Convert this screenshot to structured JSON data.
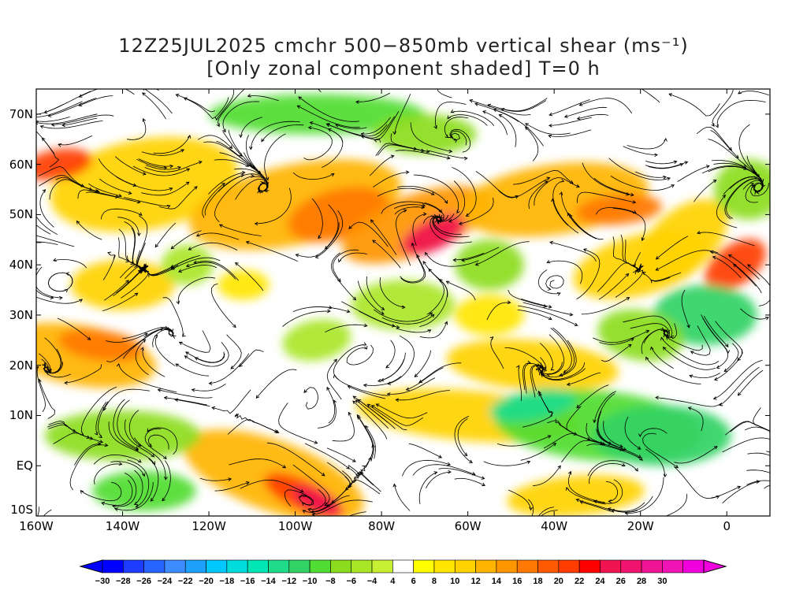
{
  "title": {
    "line1": "12Z25JUL2025 cmchr 500−850mb vertical shear (ms⁻¹)",
    "line2": "[Only zonal component shaded] T=0 h"
  },
  "map": {
    "lat_labels": [
      "70N",
      "60N",
      "50N",
      "40N",
      "30N",
      "20N",
      "10N",
      "EQ",
      "10S"
    ],
    "lat_values": [
      70,
      60,
      50,
      40,
      30,
      20,
      10,
      0,
      -10
    ],
    "lon_labels": [
      "160W",
      "140W",
      "120W",
      "100W",
      "80W",
      "60W",
      "40W",
      "20W",
      "0"
    ],
    "lon_values": [
      -160,
      -140,
      -120,
      -100,
      -80,
      -60,
      -40,
      -20,
      0
    ],
    "lat_range": [
      -10,
      75
    ],
    "lon_range": [
      -160,
      10
    ],
    "field": "500-850mb zonal vertical shear, streamlines overlaid"
  },
  "colorbar": {
    "labels": [
      "-30",
      "-28",
      "-26",
      "-24",
      "-22",
      "-20",
      "-18",
      "-16",
      "-14",
      "-12",
      "-10",
      "-8",
      "-6",
      "-4",
      "4",
      "6",
      "8",
      "10",
      "12",
      "14",
      "16",
      "18",
      "20",
      "22",
      "24",
      "26",
      "28",
      "30"
    ],
    "colors": [
      "#0000ff",
      "#1e3cff",
      "#2864ff",
      "#3c8cff",
      "#1ea0ff",
      "#00c8ff",
      "#00dcdc",
      "#00e6b4",
      "#1edc8c",
      "#32d264",
      "#50dc32",
      "#8cdc1e",
      "#aae628",
      "#c8f032",
      "#ffffff",
      "#ffff00",
      "#ffe600",
      "#ffd200",
      "#ffb400",
      "#ff9600",
      "#ff7800",
      "#ff5a00",
      "#ff3c00",
      "#ff0000",
      "#f01450",
      "#f0146e",
      "#f01496",
      "#f014b4",
      "#f000dc"
    ],
    "under_color": "#0000ff",
    "over_color": "#f000dc"
  }
}
